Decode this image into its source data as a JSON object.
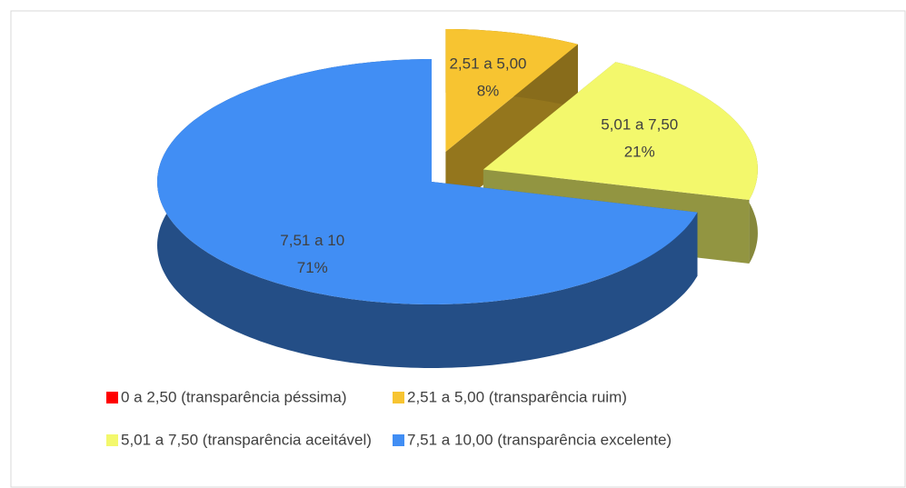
{
  "chart_data": {
    "type": "pie3d",
    "categories": [
      "0 a 2,50 (transparência péssima)",
      "2,51 a 5,00 (transparência ruim)",
      "5,01 a 7,50 (transparência aceitável)",
      "7,51 a 10,00 (transparência excelente)"
    ],
    "values": [
      0,
      8,
      21,
      71
    ],
    "data_label_names": [
      null,
      "2,51 a 5,00",
      "5,01 a 7,50",
      "7,51 a 10"
    ],
    "value_labels": [
      null,
      "8%",
      "21%",
      "71%"
    ],
    "colors": [
      "#ff0000",
      "#f7c431",
      "#f3f86c",
      "#418ef4"
    ],
    "exploded": [
      true,
      true,
      true,
      false
    ],
    "legend": "bottom"
  }
}
